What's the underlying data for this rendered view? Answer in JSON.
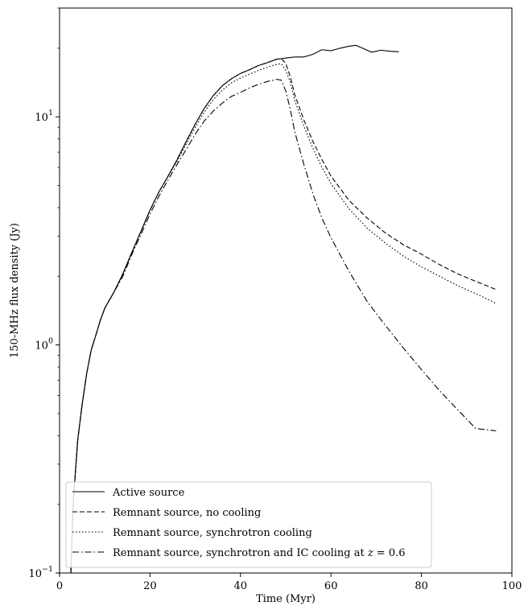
{
  "chart_data": {
    "type": "line",
    "title": "",
    "xlabel": "Time (Myr)",
    "ylabel": "150-MHz flux density (Jy)",
    "xlim": [
      0,
      100
    ],
    "ylim": [
      0.1,
      30
    ],
    "yscale": "log",
    "grid": false,
    "legend_position": "lower-left",
    "x_ticks": [
      {
        "value": 0,
        "label": "0"
      },
      {
        "value": 20,
        "label": "20"
      },
      {
        "value": 40,
        "label": "40"
      },
      {
        "value": 60,
        "label": "60"
      },
      {
        "value": 80,
        "label": "80"
      },
      {
        "value": 100,
        "label": "100"
      }
    ],
    "y_ticks": [
      {
        "value": 0.1,
        "base": "10",
        "exp": "−1"
      },
      {
        "value": 1,
        "base": "10",
        "exp": "0"
      },
      {
        "value": 10,
        "base": "10",
        "exp": "1"
      }
    ],
    "series": [
      {
        "name": "Active source",
        "linestyle": "solid",
        "x": [
          2.5,
          3,
          4,
          5,
          6,
          7,
          8,
          9,
          10,
          12,
          14,
          16,
          18,
          20,
          22,
          24,
          26,
          28,
          30,
          32,
          34,
          36,
          38,
          40,
          42,
          44,
          46,
          48,
          49,
          50,
          52,
          54,
          56,
          58,
          60,
          62,
          64,
          65.5,
          67,
          69,
          71,
          73,
          75
        ],
        "y": [
          0.1,
          0.2,
          0.38,
          0.55,
          0.75,
          0.95,
          1.1,
          1.28,
          1.45,
          1.7,
          2.05,
          2.55,
          3.15,
          3.9,
          4.7,
          5.5,
          6.5,
          7.8,
          9.3,
          10.9,
          12.4,
          13.7,
          14.7,
          15.5,
          16.1,
          16.8,
          17.3,
          17.9,
          18.0,
          18.1,
          18.3,
          18.3,
          18.8,
          19.7,
          19.5,
          20.0,
          20.4,
          20.6,
          20.0,
          19.2,
          19.6,
          19.4,
          19.3
        ]
      },
      {
        "name": "Remnant source, no cooling",
        "linestyle": "dashed",
        "x": [
          2.5,
          3,
          4,
          5,
          6,
          7,
          8,
          9,
          10,
          12,
          14,
          16,
          18,
          20,
          22,
          24,
          26,
          28,
          30,
          32,
          34,
          36,
          38,
          40,
          42,
          44,
          46,
          48,
          49,
          50,
          51,
          52,
          54,
          56,
          58,
          60,
          64,
          68,
          72,
          76,
          80,
          84,
          88,
          92,
          96.5
        ],
        "y": [
          0.1,
          0.2,
          0.38,
          0.55,
          0.75,
          0.95,
          1.1,
          1.28,
          1.45,
          1.7,
          2.05,
          2.55,
          3.15,
          3.9,
          4.7,
          5.5,
          6.5,
          7.8,
          9.3,
          10.9,
          12.4,
          13.7,
          14.7,
          15.5,
          16.1,
          16.8,
          17.3,
          17.9,
          18.0,
          17.2,
          15.0,
          12.5,
          9.7,
          7.8,
          6.5,
          5.5,
          4.3,
          3.6,
          3.1,
          2.75,
          2.5,
          2.25,
          2.05,
          1.9,
          1.75
        ]
      },
      {
        "name": "Remnant source, synchrotron cooling",
        "linestyle": "dotted",
        "x": [
          2.5,
          3,
          4,
          5,
          6,
          7,
          8,
          9,
          10,
          12,
          14,
          16,
          18,
          20,
          22,
          24,
          26,
          28,
          30,
          32,
          34,
          36,
          38,
          40,
          42,
          44,
          46,
          48,
          49,
          50,
          51,
          52,
          54,
          56,
          58,
          60,
          64,
          68,
          72,
          76,
          80,
          84,
          88,
          92,
          96.5
        ],
        "y": [
          0.1,
          0.2,
          0.38,
          0.55,
          0.75,
          0.95,
          1.1,
          1.28,
          1.45,
          1.7,
          2.05,
          2.55,
          3.15,
          3.9,
          4.7,
          5.5,
          6.4,
          7.6,
          9.0,
          10.5,
          11.9,
          13.1,
          14.1,
          14.8,
          15.4,
          16.0,
          16.5,
          17.0,
          17.1,
          16.0,
          14.2,
          11.8,
          9.1,
          7.3,
          6.0,
          5.1,
          3.95,
          3.25,
          2.8,
          2.45,
          2.2,
          2.0,
          1.82,
          1.68,
          1.52
        ]
      },
      {
        "name": "Remnant source, synchrotron and IC cooling at",
        "name_math_z": "z",
        "name_math_eq": " = 0.6",
        "linestyle": "dashdot",
        "x": [
          2.5,
          3,
          4,
          5,
          6,
          7,
          8,
          9,
          10,
          12,
          14,
          16,
          18,
          20,
          22,
          24,
          26,
          28,
          30,
          32,
          34,
          36,
          38,
          40,
          42,
          44,
          46,
          48,
          49,
          50,
          51,
          52,
          54,
          56,
          58,
          60,
          64,
          68,
          72,
          76,
          80,
          84,
          88,
          92,
          96.5
        ],
        "y": [
          0.1,
          0.2,
          0.38,
          0.55,
          0.75,
          0.95,
          1.1,
          1.28,
          1.45,
          1.7,
          2.0,
          2.5,
          3.05,
          3.75,
          4.5,
          5.3,
          6.2,
          7.2,
          8.4,
          9.6,
          10.6,
          11.5,
          12.3,
          12.8,
          13.4,
          13.9,
          14.3,
          14.6,
          14.5,
          13.0,
          10.8,
          8.6,
          6.2,
          4.6,
          3.6,
          2.95,
          2.1,
          1.55,
          1.22,
          0.97,
          0.78,
          0.63,
          0.52,
          0.43,
          0.42
        ]
      }
    ]
  }
}
